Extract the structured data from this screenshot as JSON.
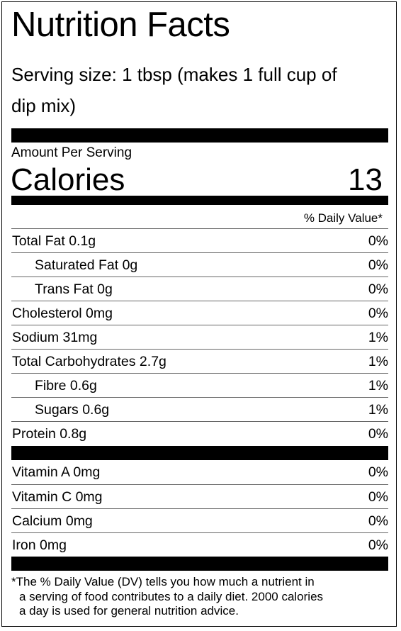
{
  "title": "Nutrition Facts",
  "serving": {
    "line1": "Serving size: 1 tbsp (makes 1 full cup of",
    "line2": "dip mix)"
  },
  "amount_per_serving": "Amount Per Serving",
  "calories": {
    "label": "Calories",
    "value": "13"
  },
  "daily_value_header": "% Daily Value*",
  "nutrients": [
    {
      "name": "Total Fat 0.1g",
      "dv": "0%"
    },
    {
      "name": "Saturated Fat 0g",
      "dv": "0%"
    },
    {
      "name": "Trans Fat 0g",
      "dv": "0%"
    },
    {
      "name": "Cholesterol 0mg",
      "dv": "0%"
    },
    {
      "name": "Sodium 31mg",
      "dv": "1%"
    },
    {
      "name": "Total Carbohydrates 2.7g",
      "dv": "1%"
    },
    {
      "name": "Fibre 0.6g",
      "dv": "1%"
    },
    {
      "name": "Sugars 0.6g",
      "dv": "1%"
    },
    {
      "name": "Protein 0.8g",
      "dv": "0%"
    }
  ],
  "vitamins": [
    {
      "name": "Vitamin A 0mg",
      "dv": "0%"
    },
    {
      "name": "Vitamin C 0mg",
      "dv": "0%"
    },
    {
      "name": "Calcium 0mg",
      "dv": "0%"
    },
    {
      "name": "Iron 0mg",
      "dv": "0%"
    }
  ],
  "footnote": {
    "line1": "*The % Daily Value (DV) tells you how much a nutrient in",
    "line2": "a serving of food contributes to a daily diet. 2000 calories",
    "line3": "a day is used for general nutrition advice."
  }
}
